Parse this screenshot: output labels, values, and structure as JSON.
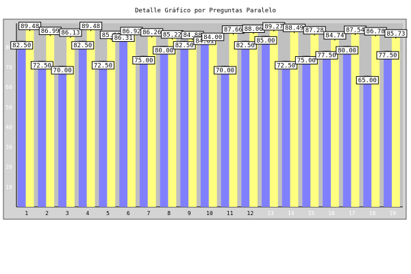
{
  "chart_data": {
    "type": "bar",
    "title": "Detalle Gráfico por Preguntas Paralelo",
    "xlabel": "",
    "ylabel": "",
    "ylim": [
      0,
      92
    ],
    "yticks": [
      10,
      20,
      30,
      40,
      50,
      60,
      70,
      80
    ],
    "categories": [
      "1",
      "2",
      "3",
      "4",
      "5",
      "6",
      "7",
      "8",
      "9",
      "10",
      "11",
      "12",
      "13",
      "14",
      "15",
      "16",
      "17",
      "18",
      "19"
    ],
    "series": [
      {
        "values": [
          82.5,
          72.5,
          70.0,
          82.5,
          72.5,
          86.31,
          75.0,
          80.0,
          82.5,
          84.81,
          70.0,
          82.5,
          85.0,
          72.5,
          75.0,
          77.5,
          80.0,
          65.0,
          77.5
        ]
      },
      {
        "values": [
          89.48,
          86.99,
          86.13,
          89.48,
          85.0,
          86.92,
          86.26,
          85.22,
          84.88,
          84.0,
          87.66,
          88.06,
          89.27,
          88.49,
          87.28,
          84.74,
          87.54,
          86.78,
          85.73
        ]
      }
    ],
    "colors": {
      "series1": "#8080ff",
      "series2": "#ffff80",
      "plot_bg": "#c0c0c0",
      "frame_bg": "#d4d4d4"
    },
    "grid": false,
    "data_labels": true
  }
}
